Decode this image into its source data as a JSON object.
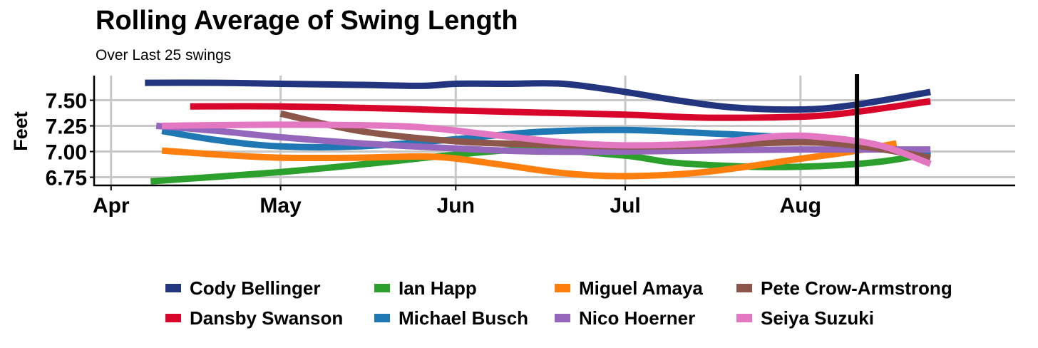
{
  "chart_data": {
    "type": "line",
    "title": "Rolling Average of Swing Length",
    "subtitle": "Over Last 25 swings",
    "xlabel": "",
    "ylabel": "Feet",
    "x_ticks": [
      "Apr",
      "May",
      "Jun",
      "Jul",
      "Aug"
    ],
    "x_tick_dates": [
      "2024-04-01",
      "2024-05-01",
      "2024-06-01",
      "2024-07-01",
      "2024-08-01"
    ],
    "xlim": [
      "2024-03-29",
      "2024-09-08"
    ],
    "y_ticks": [
      "6.75",
      "7.00",
      "7.25",
      "7.50"
    ],
    "y_tick_values": [
      6.75,
      7.0,
      7.25,
      7.5
    ],
    "ylim": [
      6.67,
      7.74
    ],
    "grid": true,
    "legend_position": "bottom",
    "reference_line": {
      "x": "2024-08-11",
      "color": "#000000"
    },
    "series": [
      {
        "name": "Cody Bellinger",
        "color": "#23357E",
        "x": [
          "2024-04-07",
          "2024-04-20",
          "2024-05-01",
          "2024-05-15",
          "2024-05-26",
          "2024-06-01",
          "2024-06-10",
          "2024-06-20",
          "2024-07-01",
          "2024-07-10",
          "2024-07-20",
          "2024-08-01",
          "2024-08-10",
          "2024-08-24"
        ],
        "values": [
          7.67,
          7.67,
          7.66,
          7.65,
          7.64,
          7.66,
          7.66,
          7.66,
          7.58,
          7.5,
          7.43,
          7.41,
          7.45,
          7.58
        ]
      },
      {
        "name": "Dansby Swanson",
        "color": "#D9062B",
        "x": [
          "2024-04-15",
          "2024-05-01",
          "2024-05-20",
          "2024-06-01",
          "2024-06-15",
          "2024-07-01",
          "2024-07-15",
          "2024-08-01",
          "2024-08-10",
          "2024-08-24"
        ],
        "values": [
          7.44,
          7.44,
          7.42,
          7.4,
          7.38,
          7.36,
          7.33,
          7.34,
          7.38,
          7.49
        ]
      },
      {
        "name": "Ian Happ",
        "color": "#2CA02C",
        "x": [
          "2024-04-08",
          "2024-05-01",
          "2024-05-20",
          "2024-06-01",
          "2024-06-15",
          "2024-07-01",
          "2024-07-10",
          "2024-07-25",
          "2024-08-05",
          "2024-08-15",
          "2024-08-24"
        ],
        "values": [
          6.71,
          6.8,
          6.9,
          6.97,
          7.02,
          6.96,
          6.89,
          6.85,
          6.86,
          6.9,
          6.98
        ]
      },
      {
        "name": "Michael Busch",
        "color": "#1F77B4",
        "x": [
          "2024-04-10",
          "2024-04-20",
          "2024-05-01",
          "2024-05-15",
          "2024-06-01",
          "2024-06-15",
          "2024-07-01",
          "2024-07-15",
          "2024-08-01",
          "2024-08-12",
          "2024-08-24"
        ],
        "values": [
          7.2,
          7.11,
          7.05,
          7.05,
          7.12,
          7.19,
          7.21,
          7.18,
          7.13,
          7.07,
          6.96
        ]
      },
      {
        "name": "Miguel Amaya",
        "color": "#FF7F0E",
        "x": [
          "2024-04-10",
          "2024-04-20",
          "2024-05-01",
          "2024-05-15",
          "2024-05-28",
          "2024-06-08",
          "2024-06-20",
          "2024-07-01",
          "2024-07-15",
          "2024-08-01",
          "2024-08-10",
          "2024-08-18"
        ],
        "values": [
          7.01,
          6.97,
          6.94,
          6.94,
          6.95,
          6.88,
          6.79,
          6.76,
          6.8,
          6.93,
          7.0,
          7.08
        ]
      },
      {
        "name": "Nico Hoerner",
        "color": "#9467BD",
        "x": [
          "2024-04-09",
          "2024-04-20",
          "2024-05-01",
          "2024-05-15",
          "2024-06-01",
          "2024-06-15",
          "2024-07-01",
          "2024-07-15",
          "2024-08-01",
          "2024-08-15",
          "2024-08-24"
        ],
        "values": [
          7.25,
          7.2,
          7.14,
          7.08,
          7.03,
          7.0,
          7.0,
          7.01,
          7.02,
          7.02,
          7.02
        ]
      },
      {
        "name": "Pete Crow-Armstrong",
        "color": "#8C564B",
        "x": [
          "2024-05-01",
          "2024-05-15",
          "2024-06-01",
          "2024-06-15",
          "2024-07-01",
          "2024-07-15",
          "2024-08-01",
          "2024-08-12",
          "2024-08-24"
        ],
        "values": [
          7.37,
          7.2,
          7.1,
          7.07,
          7.05,
          7.06,
          7.09,
          7.05,
          6.94
        ]
      },
      {
        "name": "Seiya Suzuki",
        "color": "#E377C2",
        "x": [
          "2024-04-10",
          "2024-04-25",
          "2024-05-10",
          "2024-05-25",
          "2024-06-08",
          "2024-06-20",
          "2024-07-01",
          "2024-07-15",
          "2024-07-28",
          "2024-08-05",
          "2024-08-15",
          "2024-08-24"
        ],
        "values": [
          7.25,
          7.26,
          7.26,
          7.24,
          7.16,
          7.09,
          7.06,
          7.08,
          7.15,
          7.14,
          7.06,
          6.88
        ]
      }
    ]
  }
}
